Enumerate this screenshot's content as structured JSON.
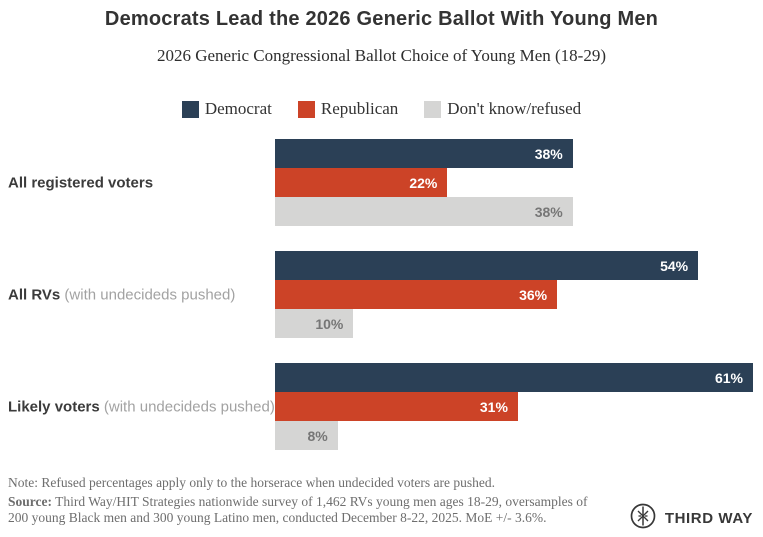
{
  "chart_data": {
    "type": "bar",
    "orientation": "horizontal",
    "title": "Democrats Lead the 2026 Generic Ballot With Young Men",
    "subtitle": "2026 Generic Congressional Ballot Choice of Young Men (18-29)",
    "legend_position": "top",
    "grid": false,
    "xlim": [
      0,
      61
    ],
    "value_suffix": "%",
    "categories": [
      {
        "bold": "All registered voters",
        "light": ""
      },
      {
        "bold": "All RVs",
        "light": "(with undecideds pushed)"
      },
      {
        "bold": "Likely voters",
        "light": "(with undecideds pushed)"
      }
    ],
    "series": [
      {
        "name": "Democrat",
        "color": "#2b4056",
        "text_color": "#ffffff",
        "values": [
          38,
          54,
          61
        ]
      },
      {
        "name": "Republican",
        "color": "#cc4327",
        "text_color": "#ffffff",
        "values": [
          22,
          36,
          31
        ]
      },
      {
        "name": "Don't know/refused",
        "color": "#d5d5d4",
        "text_color": "#767676",
        "values": [
          38,
          10,
          8
        ]
      }
    ]
  },
  "footer": {
    "note": "Note: Refused percentages apply only to the horserace when undecided voters are pushed.",
    "source_label": "Source:",
    "source_text": " Third Way/HIT Strategies nationwide survey of 1,462 RVs young men ages 18-29, oversamples of 200 young Black men and 300 young Latino men, conducted December 8-22, 2025. MoE +/- 3.6%.",
    "logo_text": "THIRD WAY"
  },
  "colors": {
    "title": "#333333",
    "background": "#ffffff",
    "footer_text": "#6e6e6e",
    "logo": "#383838"
  }
}
